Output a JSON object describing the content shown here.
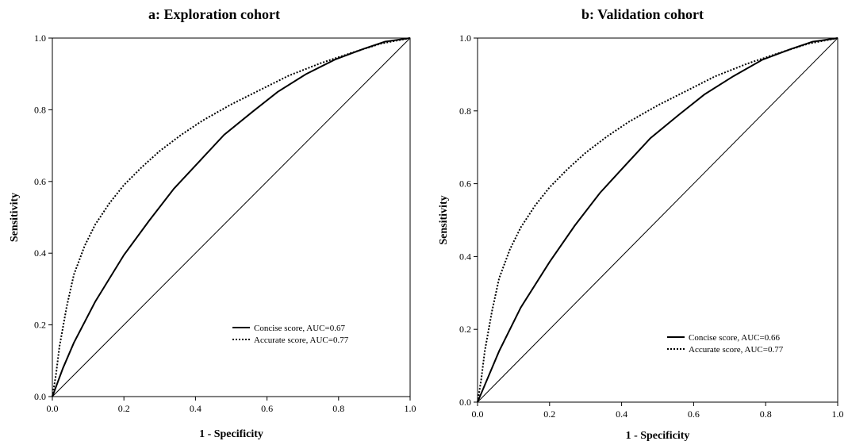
{
  "chart_data": [
    {
      "type": "line",
      "title": "a: Exploration cohort",
      "xlabel": "1 - Specificity",
      "ylabel": "Sensitivity",
      "xlim": [
        0,
        1
      ],
      "ylim": [
        0,
        1
      ],
      "xticks": [
        "0.0",
        "0.2",
        "0.4",
        "0.6",
        "0.8",
        "1.0"
      ],
      "yticks": [
        "0.0",
        "0.2",
        "0.4",
        "0.6",
        "0.8",
        "1.0"
      ],
      "grid": false,
      "legend_position": "bottom-right",
      "series": [
        {
          "name": "Concise score, AUC=0.67",
          "style": "solid",
          "x": [
            0,
            0.03,
            0.06,
            0.12,
            0.2,
            0.27,
            0.34,
            0.41,
            0.48,
            0.56,
            0.63,
            0.71,
            0.79,
            0.87,
            0.93,
            1.0
          ],
          "y": [
            0,
            0.08,
            0.15,
            0.265,
            0.395,
            0.49,
            0.58,
            0.655,
            0.73,
            0.795,
            0.85,
            0.9,
            0.94,
            0.97,
            0.99,
            1.0
          ]
        },
        {
          "name": "Accurate score, AUC=0.77",
          "style": "dotted",
          "x": [
            0,
            0.01,
            0.02,
            0.04,
            0.06,
            0.09,
            0.12,
            0.16,
            0.2,
            0.25,
            0.3,
            0.36,
            0.42,
            0.5,
            0.58,
            0.66,
            0.75,
            0.84,
            0.92,
            1.0
          ],
          "y": [
            0,
            0.06,
            0.14,
            0.25,
            0.34,
            0.42,
            0.48,
            0.54,
            0.59,
            0.64,
            0.685,
            0.73,
            0.77,
            0.815,
            0.855,
            0.895,
            0.93,
            0.96,
            0.985,
            1.0
          ]
        },
        {
          "name": "",
          "style": "reference",
          "x": [
            0,
            1
          ],
          "y": [
            0,
            1
          ]
        }
      ]
    },
    {
      "type": "line",
      "title": "b: Validation cohort",
      "xlabel": "1 - Specificity",
      "ylabel": "Sensitivity",
      "xlim": [
        0,
        1
      ],
      "ylim": [
        0,
        1
      ],
      "xticks": [
        "0.0",
        "0.2",
        "0.4",
        "0.6",
        "0.8",
        "1.0"
      ],
      "yticks": [
        "0.0",
        "0.2",
        "0.4",
        "0.6",
        "0.8",
        "1.0"
      ],
      "grid": false,
      "legend_position": "bottom-right",
      "series": [
        {
          "name": "Concise score, AUC=0.66",
          "style": "solid",
          "x": [
            0,
            0.03,
            0.06,
            0.12,
            0.2,
            0.27,
            0.34,
            0.41,
            0.48,
            0.56,
            0.63,
            0.71,
            0.79,
            0.87,
            0.93,
            1.0
          ],
          "y": [
            0,
            0.07,
            0.14,
            0.26,
            0.385,
            0.485,
            0.575,
            0.65,
            0.725,
            0.79,
            0.845,
            0.895,
            0.94,
            0.97,
            0.99,
            1.0
          ]
        },
        {
          "name": "Accurate score, AUC=0.77",
          "style": "dotted",
          "x": [
            0,
            0.01,
            0.02,
            0.04,
            0.06,
            0.09,
            0.12,
            0.16,
            0.2,
            0.25,
            0.3,
            0.36,
            0.42,
            0.5,
            0.58,
            0.66,
            0.75,
            0.84,
            0.92,
            1.0
          ],
          "y": [
            0,
            0.06,
            0.14,
            0.25,
            0.34,
            0.42,
            0.48,
            0.54,
            0.59,
            0.64,
            0.685,
            0.73,
            0.77,
            0.815,
            0.855,
            0.895,
            0.93,
            0.96,
            0.985,
            1.0
          ]
        },
        {
          "name": "",
          "style": "reference",
          "x": [
            0,
            1
          ],
          "y": [
            0,
            1
          ]
        }
      ]
    }
  ]
}
